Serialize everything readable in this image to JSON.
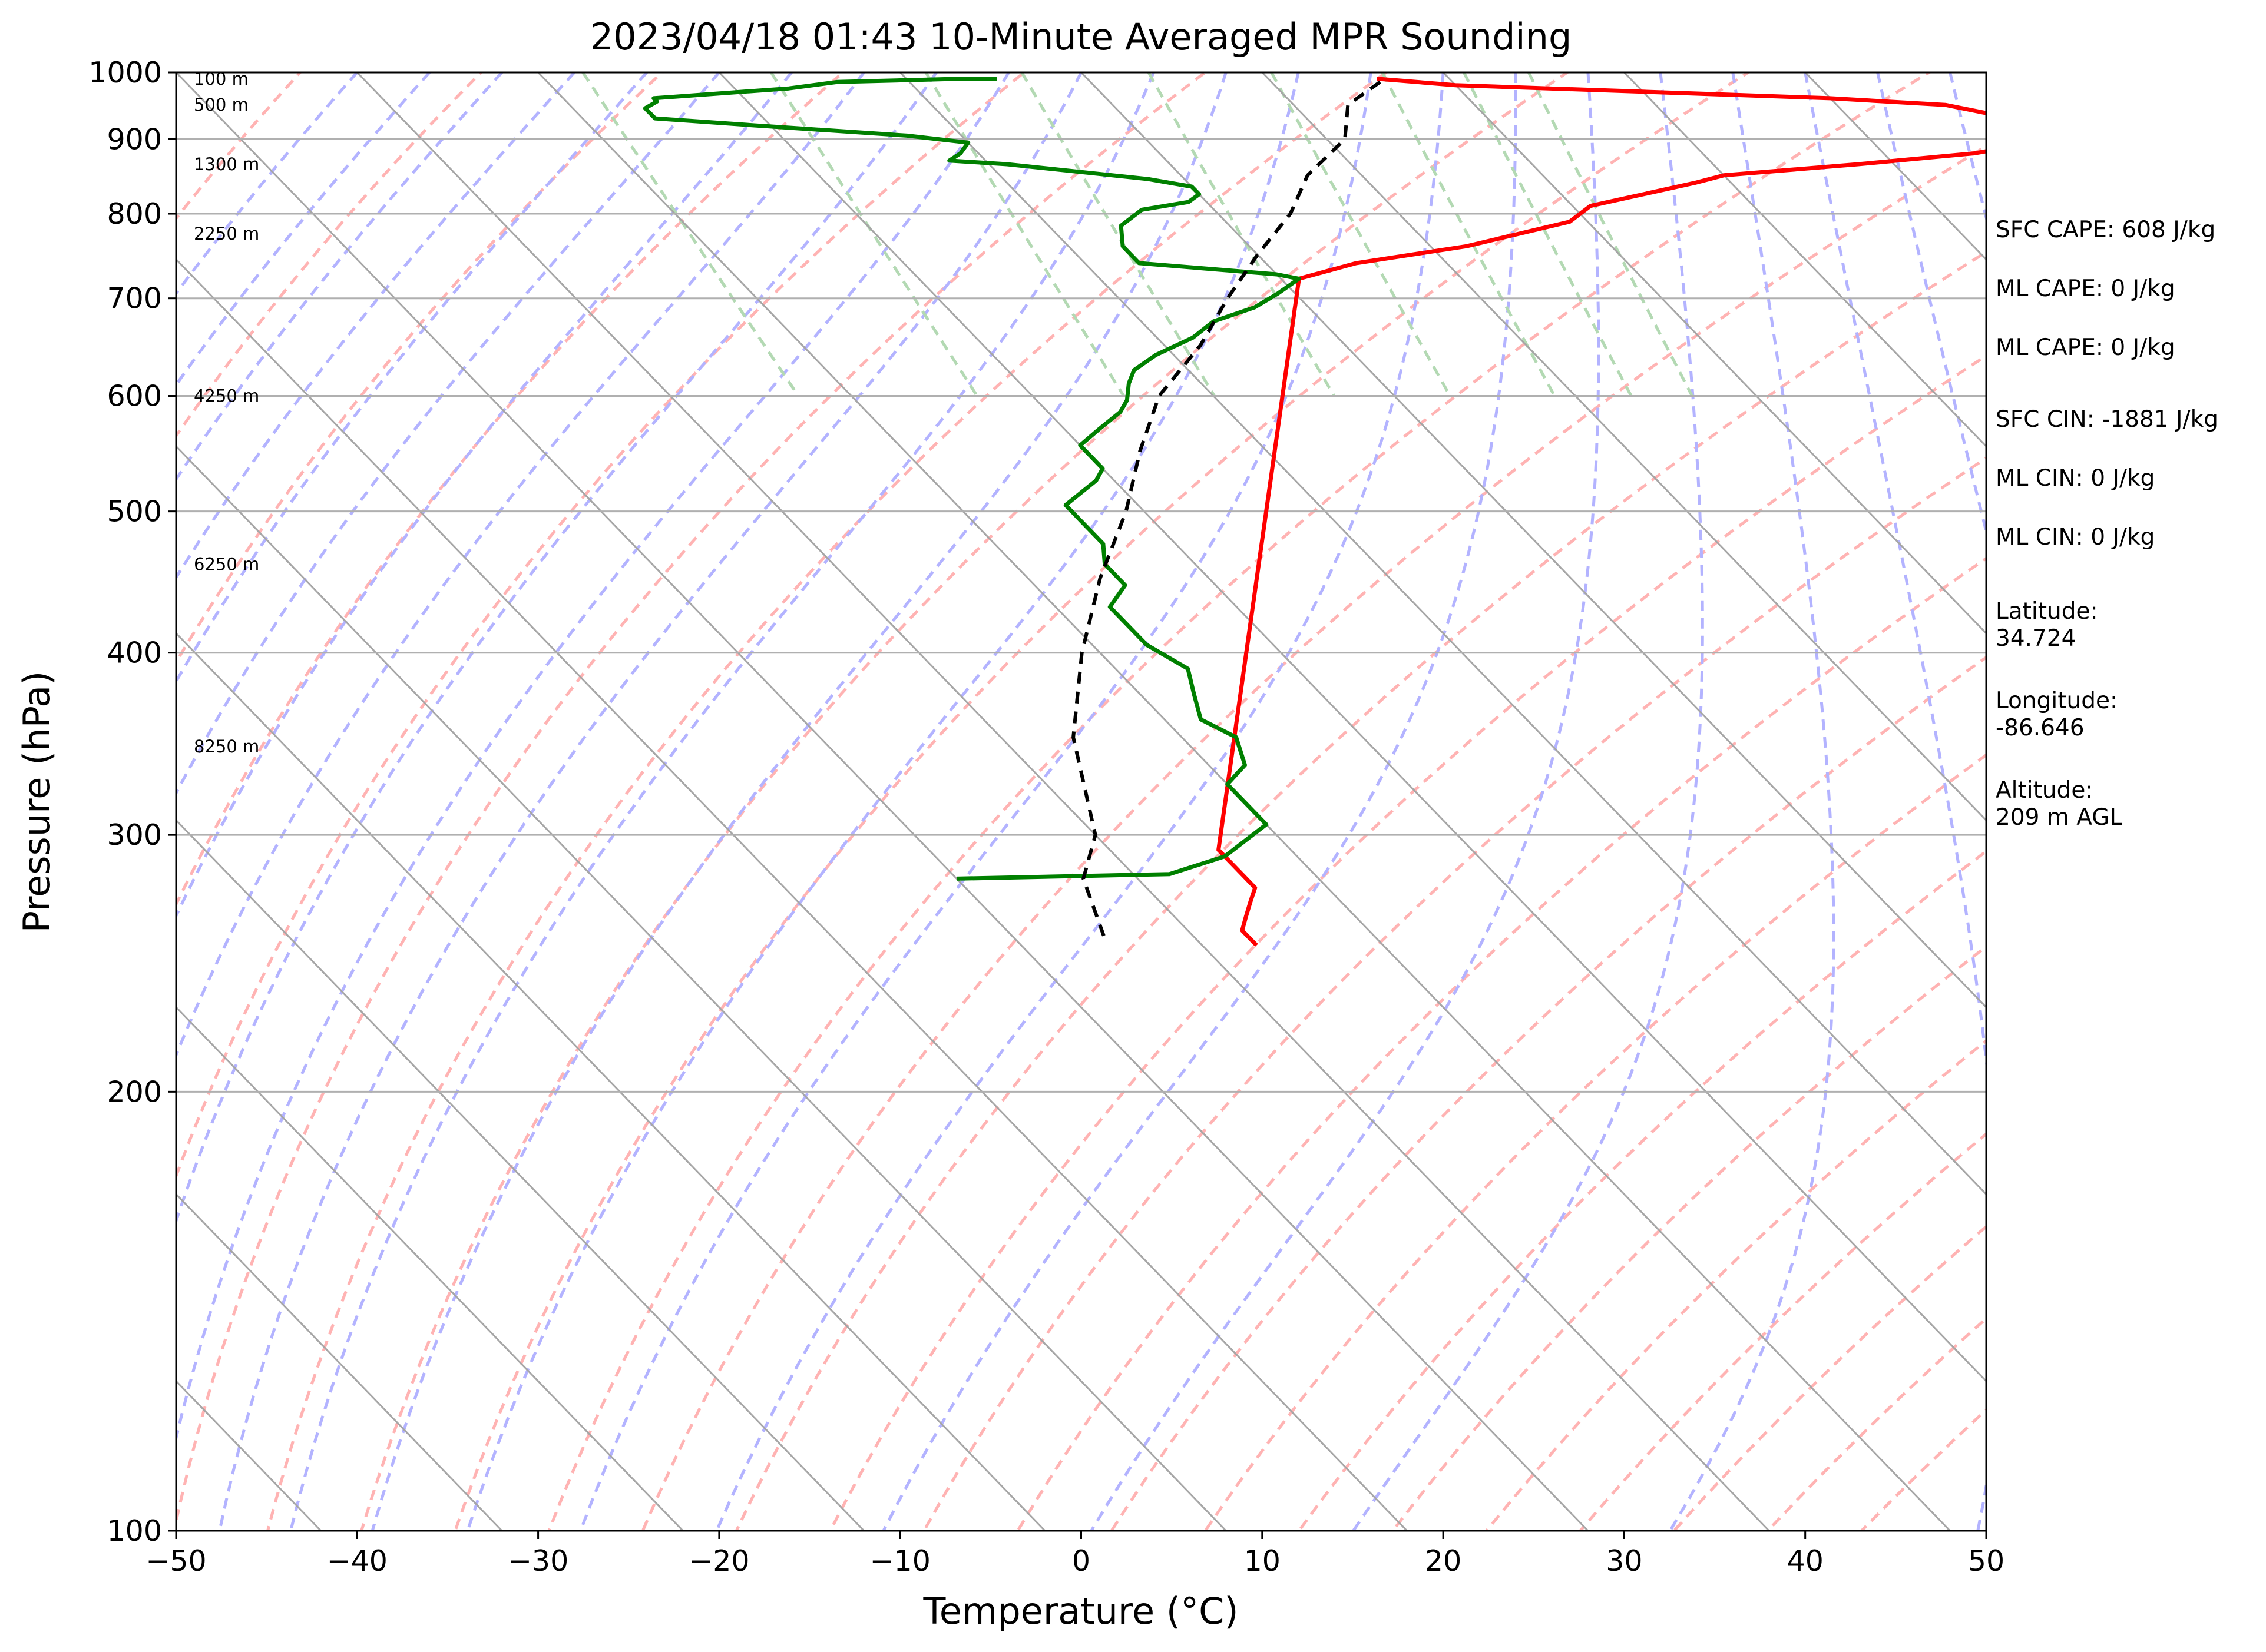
{
  "chart_data": {
    "type": "skew-t",
    "title": "2023/04/18 01:43 10-Minute Averaged MPR Sounding",
    "xlabel": "Temperature (°C)",
    "ylabel": "Pressure (hPa)",
    "xlim": [
      -50,
      50
    ],
    "ylim": [
      1000,
      100
    ],
    "yscale": "log",
    "x_ticks": [
      -50,
      -40,
      -30,
      -20,
      -10,
      0,
      10,
      20,
      30,
      40,
      50
    ],
    "y_ticks": [
      100,
      200,
      300,
      400,
      500,
      600,
      700,
      800,
      900,
      1000
    ],
    "x_tick_labels": [
      "−50",
      "−40",
      "−30",
      "−20",
      "−10",
      "0",
      "10",
      "20",
      "30",
      "40",
      "50"
    ],
    "y_tick_labels": [
      "100",
      "200",
      "300",
      "400",
      "500",
      "600",
      "700",
      "800",
      "900",
      "1000"
    ],
    "height_labels": [
      {
        "pressure": 990,
        "label": "100 m"
      },
      {
        "pressure": 950,
        "label": "500 m"
      },
      {
        "pressure": 865,
        "label": "1300 m"
      },
      {
        "pressure": 775,
        "label": "2250 m"
      },
      {
        "pressure": 600,
        "label": "4250 m"
      },
      {
        "pressure": 460,
        "label": "6250 m"
      },
      {
        "pressure": 345,
        "label": "8250 m"
      }
    ],
    "background_lines": {
      "isotherms": {
        "color": "#a6a6a6",
        "style": "solid"
      },
      "dry_adiabats": {
        "color": "#ffb3b3",
        "style": "dashed"
      },
      "moist_adiabats": {
        "color": "#b3b3ff",
        "style": "dashed"
      },
      "mixing_ratio": {
        "color": "#b3d9b3",
        "style": "dashed"
      }
    },
    "series": [
      {
        "name": "",
        "color": "#ff0000",
        "points": [
          [
            16,
            990
          ],
          [
            20,
            980
          ],
          [
            30,
            970
          ],
          [
            40,
            960
          ],
          [
            46,
            950
          ],
          [
            49,
            930
          ],
          [
            50,
            905
          ],
          [
            49,
            895
          ],
          [
            45,
            880
          ],
          [
            38,
            865
          ],
          [
            30,
            850
          ],
          [
            28,
            840
          ],
          [
            21,
            810
          ],
          [
            19,
            790
          ],
          [
            12,
            760
          ],
          [
            5,
            740
          ],
          [
            1,
            722
          ],
          [
            -34,
            293
          ],
          [
            -34,
            285
          ],
          [
            -34,
            276
          ],
          [
            -35,
            270
          ],
          [
            -36,
            264
          ],
          [
            -37,
            258
          ],
          [
            -37,
            252
          ]
        ]
      },
      {
        "name": "",
        "color": "#008000",
        "points": [
          [
            -5,
            990
          ],
          [
            -7,
            990
          ],
          [
            -14,
            985
          ],
          [
            -17,
            975
          ],
          [
            -25,
            960
          ],
          [
            -25,
            955
          ],
          [
            -26,
            945
          ],
          [
            -26,
            940
          ],
          [
            -26,
            930
          ],
          [
            -21,
            920
          ],
          [
            -13,
            905
          ],
          [
            -10,
            895
          ],
          [
            -11,
            880
          ],
          [
            -12,
            870
          ],
          [
            -9,
            865
          ],
          [
            -2,
            845
          ],
          [
            0,
            835
          ],
          [
            0,
            825
          ],
          [
            -1,
            815
          ],
          [
            -4,
            805
          ],
          [
            -6,
            785
          ],
          [
            -7,
            760
          ],
          [
            -7,
            750
          ],
          [
            -7,
            740
          ],
          [
            0,
            727
          ],
          [
            1,
            722
          ],
          [
            -1,
            705
          ],
          [
            -3,
            690
          ],
          [
            -5,
            680
          ],
          [
            -6,
            675
          ],
          [
            -8,
            658
          ],
          [
            -11,
            640
          ],
          [
            -13,
            625
          ],
          [
            -14,
            612
          ],
          [
            -15,
            596
          ],
          [
            -16,
            585
          ],
          [
            -18,
            570
          ],
          [
            -20,
            555
          ],
          [
            -20,
            545
          ],
          [
            -20,
            535
          ],
          [
            -21,
            525
          ],
          [
            -24,
            505
          ],
          [
            -24,
            495
          ],
          [
            -24,
            475
          ],
          [
            -25,
            460
          ],
          [
            -25,
            445
          ],
          [
            -27,
            430
          ],
          [
            -27,
            420
          ],
          [
            -27,
            405
          ],
          [
            -26,
            390
          ],
          [
            -27,
            375
          ],
          [
            -28,
            360
          ],
          [
            -27,
            350
          ],
          [
            -28,
            335
          ],
          [
            -30,
            325
          ],
          [
            -30,
            315
          ],
          [
            -30,
            305
          ],
          [
            -34,
            290
          ],
          [
            -38,
            282
          ],
          [
            -50,
            280
          ]
        ]
      },
      {
        "name": "",
        "color": "#000000",
        "style": "dashed",
        "points": [
          [
            16,
            985
          ],
          [
            13,
            950
          ],
          [
            11,
            900
          ],
          [
            7,
            850
          ],
          [
            4,
            800
          ],
          [
            0,
            750
          ],
          [
            -4,
            700
          ],
          [
            -8,
            650
          ],
          [
            -13,
            600
          ],
          [
            -17,
            550
          ],
          [
            -21,
            500
          ],
          [
            -26,
            450
          ],
          [
            -31,
            400
          ],
          [
            -36,
            350
          ],
          [
            -40,
            300
          ],
          [
            -43,
            280
          ],
          [
            -45,
            255
          ]
        ]
      }
    ]
  },
  "stats": {
    "sfc_cape": "SFC CAPE: 608 J/kg",
    "ml_cape_1": "ML CAPE: 0 J/kg",
    "ml_cape_2": "ML CAPE: 0 J/kg",
    "sfc_cin": "SFC CIN: -1881 J/kg",
    "ml_cin_1": "ML CIN: 0 J/kg",
    "ml_cin_2": "ML CIN: 0 J/kg",
    "latitude_label": "Latitude:",
    "latitude_value": "34.724",
    "longitude_label": "Longitude:",
    "longitude_value": "-86.646",
    "altitude_label": "Altitude:",
    "altitude_value": "209 m AGL"
  }
}
